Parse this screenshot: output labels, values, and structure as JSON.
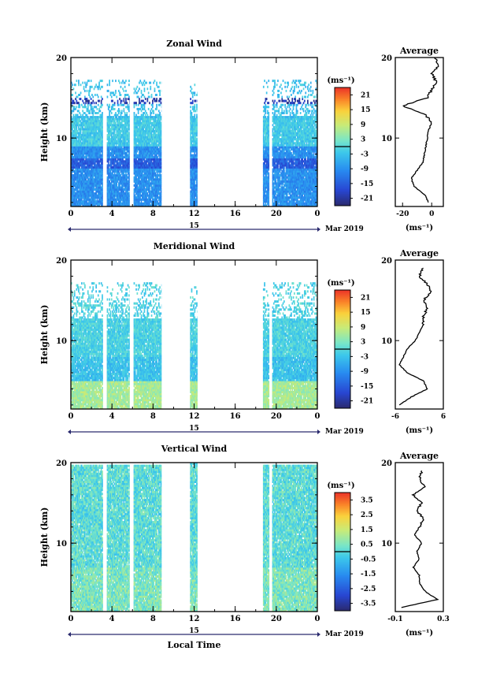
{
  "figure": {
    "xlabel": "Local Time",
    "date_label": "Mar 2019",
    "day_label": "15",
    "ylabel": "Height (km)",
    "average_title": "Average",
    "unit": "(ms⁻¹)",
    "x_ticks": [
      "0",
      "4",
      "8",
      "12",
      "16",
      "20",
      "0"
    ],
    "y_ticks": [
      "10",
      "20"
    ]
  },
  "chart_data": [
    {
      "type": "heatmap",
      "title": "Zonal Wind",
      "xlabel": "Local Time",
      "ylabel": "Height (km)",
      "xlim": [
        0,
        24
      ],
      "ylim": [
        1.5,
        20
      ],
      "colorbar": {
        "label": "(ms⁻¹)",
        "ticks": [
          21,
          15,
          9,
          3,
          -3,
          -9,
          -15,
          -21
        ],
        "range": [
          -24,
          24
        ]
      },
      "data_columns_hours": [
        [
          0,
          3.1
        ],
        [
          3.5,
          5.7
        ],
        [
          6.1,
          8.8
        ],
        [
          11.6,
          12.3
        ],
        [
          18.7,
          19.3
        ],
        [
          19.6,
          24
        ]
      ],
      "typical_values": {
        "low_levels": -9,
        "mid_levels": -6,
        "jet_14km": -20,
        "upper": -3
      },
      "average_profile": {
        "xlim": [
          -25,
          8
        ],
        "x_ticks": [
          "-20",
          "0"
        ],
        "height_km": [
          2,
          3,
          4,
          5,
          6,
          7,
          8,
          9,
          10,
          11,
          12,
          13,
          14,
          15,
          16,
          17,
          18,
          19,
          20
        ],
        "value": [
          -2,
          -5,
          -12,
          -14,
          -10,
          -6,
          -5,
          -4,
          -3,
          -2,
          0,
          -5,
          -20,
          -3,
          0,
          3,
          0,
          5,
          2
        ]
      }
    },
    {
      "type": "heatmap",
      "title": "Meridional Wind",
      "xlabel": "Local Time",
      "ylabel": "Height (km)",
      "xlim": [
        0,
        24
      ],
      "ylim": [
        1.5,
        20
      ],
      "colorbar": {
        "label": "(ms⁻¹)",
        "ticks": [
          21,
          15,
          9,
          3,
          -3,
          -9,
          -15,
          -21
        ],
        "range": [
          -24,
          24
        ]
      },
      "data_columns_hours": [
        [
          0,
          3.1
        ],
        [
          3.5,
          5.7
        ],
        [
          6.1,
          8.8
        ],
        [
          11.6,
          12.3
        ],
        [
          18.7,
          19.3
        ],
        [
          19.6,
          24
        ]
      ],
      "typical_values": {
        "low_levels": 2,
        "mid_levels": -5,
        "upper": -1
      },
      "average_profile": {
        "xlim": [
          -6,
          6
        ],
        "x_ticks": [
          "-6",
          "6"
        ],
        "height_km": [
          2,
          3,
          4,
          5,
          6,
          7,
          8,
          9,
          10,
          11,
          12,
          13,
          14,
          15,
          16,
          17,
          18,
          19
        ],
        "value": [
          -5,
          -2,
          2,
          1,
          -3,
          -5,
          -4,
          -3,
          -1,
          0,
          1,
          1,
          2,
          1,
          3,
          2,
          0,
          1
        ]
      }
    },
    {
      "type": "heatmap",
      "title": "Vertical Wind",
      "xlabel": "Local Time",
      "ylabel": "Height (km)",
      "xlim": [
        0,
        24
      ],
      "ylim": [
        1.5,
        20
      ],
      "colorbar": {
        "label": "(ms⁻¹)",
        "ticks": [
          3.5,
          2.5,
          1.5,
          0.5,
          -0.5,
          -1.5,
          -2.5,
          -3.5
        ],
        "range": [
          -4,
          4
        ]
      },
      "data_columns_hours": [
        [
          0,
          3.1
        ],
        [
          3.5,
          5.7
        ],
        [
          6.1,
          8.8
        ],
        [
          11.6,
          12.3
        ],
        [
          18.7,
          19.3
        ],
        [
          19.6,
          24
        ]
      ],
      "typical_values": {
        "all_levels": 0.1
      },
      "average_profile": {
        "xlim": [
          -0.1,
          0.3
        ],
        "x_ticks": [
          "-0.1",
          "0.3"
        ],
        "height_km": [
          2,
          3,
          4,
          5,
          6,
          7,
          8,
          9,
          10,
          11,
          12,
          13,
          14,
          15,
          16,
          17,
          18,
          19
        ],
        "value": [
          -0.05,
          0.25,
          0.15,
          0.1,
          0.1,
          0.05,
          0.1,
          0.08,
          0.12,
          0.06,
          0.1,
          0.14,
          0.08,
          0.12,
          0.05,
          0.15,
          0.1,
          0.12
        ]
      }
    }
  ]
}
